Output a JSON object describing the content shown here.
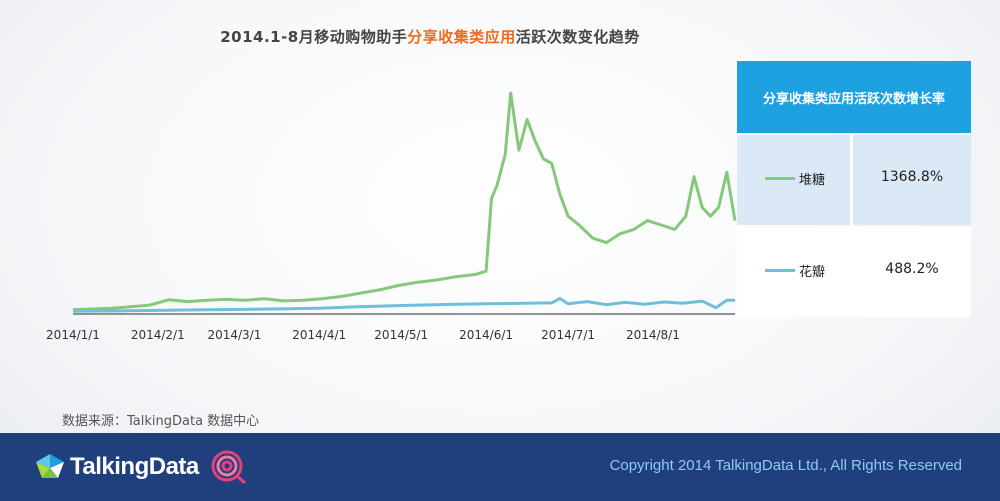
{
  "title": {
    "prefix": "2014.1-8月移动购物助手",
    "highlight": "分享收集类应用",
    "suffix": "活跃次数变化趋势",
    "highlight_color": "#ee6b1b"
  },
  "growth_table": {
    "header": "分享收集类应用活跃次数增长率",
    "header_color": "#1da1e1",
    "rows": [
      {
        "name": "堆糖",
        "value": "1368.8%",
        "color": "#84c97a"
      },
      {
        "name": "花瓣",
        "value": "488.2%",
        "color": "#6fbfdc"
      }
    ]
  },
  "source": "数据来源：TalkingData 数据中心",
  "footer": {
    "brand": "TalkingData",
    "copyright": "Copyright 2014 TalkingData Ltd., All Rights Reserved",
    "background": "#1f3f7d"
  },
  "chart_data": {
    "type": "line",
    "x_start": "2014/1/1",
    "x_end": "2014/8/31",
    "x_ticks": [
      "2014/1/1",
      "2014/2/1",
      "2014/3/1",
      "2014/4/1",
      "2014/5/1",
      "2014/6/1",
      "2014/7/1",
      "2014/8/1"
    ],
    "y_axis_visible": false,
    "ylim": [
      0,
      100
    ],
    "grid": false,
    "legend": "right-table",
    "series": [
      {
        "name": "堆糖",
        "color": "#84c97a",
        "points": [
          [
            "2014/1/1",
            1.5
          ],
          [
            "2014/1/8",
            1.8
          ],
          [
            "2014/1/15",
            2.2
          ],
          [
            "2014/1/22",
            2.8
          ],
          [
            "2014/1/29",
            3.6
          ],
          [
            "2014/2/5",
            6.0
          ],
          [
            "2014/2/12",
            5.2
          ],
          [
            "2014/2/19",
            5.8
          ],
          [
            "2014/2/26",
            6.2
          ],
          [
            "2014/3/5",
            5.8
          ],
          [
            "2014/3/12",
            6.5
          ],
          [
            "2014/3/19",
            5.5
          ],
          [
            "2014/3/26",
            5.8
          ],
          [
            "2014/4/2",
            6.5
          ],
          [
            "2014/4/9",
            7.5
          ],
          [
            "2014/4/16",
            9.0
          ],
          [
            "2014/4/23",
            10.5
          ],
          [
            "2014/4/30",
            12.5
          ],
          [
            "2014/5/7",
            14.0
          ],
          [
            "2014/5/14",
            15.0
          ],
          [
            "2014/5/21",
            16.5
          ],
          [
            "2014/5/28",
            17.5
          ],
          [
            "2014/6/1",
            19.0
          ],
          [
            "2014/6/3",
            52.0
          ],
          [
            "2014/6/5",
            58.0
          ],
          [
            "2014/6/8",
            72.0
          ],
          [
            "2014/6/10",
            100.0
          ],
          [
            "2014/6/13",
            74.0
          ],
          [
            "2014/6/16",
            88.0
          ],
          [
            "2014/6/19",
            78.0
          ],
          [
            "2014/6/22",
            70.0
          ],
          [
            "2014/6/25",
            68.0
          ],
          [
            "2014/6/28",
            54.0
          ],
          [
            "2014/7/1",
            44.0
          ],
          [
            "2014/7/5",
            40.0
          ],
          [
            "2014/7/10",
            34.0
          ],
          [
            "2014/7/15",
            32.0
          ],
          [
            "2014/7/20",
            36.0
          ],
          [
            "2014/7/25",
            38.0
          ],
          [
            "2014/7/30",
            42.0
          ],
          [
            "2014/8/4",
            40.0
          ],
          [
            "2014/8/9",
            38.0
          ],
          [
            "2014/8/13",
            44.0
          ],
          [
            "2014/8/16",
            62.0
          ],
          [
            "2014/8/19",
            48.0
          ],
          [
            "2014/8/22",
            44.0
          ],
          [
            "2014/8/25",
            48.0
          ],
          [
            "2014/8/28",
            64.0
          ],
          [
            "2014/8/31",
            42.0
          ]
        ]
      },
      {
        "name": "花瓣",
        "color": "#6fbfdc",
        "points": [
          [
            "2014/1/1",
            0.8
          ],
          [
            "2014/1/15",
            0.9
          ],
          [
            "2014/2/1",
            1.2
          ],
          [
            "2014/2/15",
            1.4
          ],
          [
            "2014/3/1",
            1.6
          ],
          [
            "2014/3/15",
            1.8
          ],
          [
            "2014/4/1",
            2.2
          ],
          [
            "2014/4/15",
            2.8
          ],
          [
            "2014/5/1",
            3.4
          ],
          [
            "2014/5/15",
            3.8
          ],
          [
            "2014/6/1",
            4.2
          ],
          [
            "2014/6/15",
            4.4
          ],
          [
            "2014/6/25",
            4.6
          ],
          [
            "2014/6/28",
            6.6
          ],
          [
            "2014/7/1",
            4.2
          ],
          [
            "2014/7/8",
            5.2
          ],
          [
            "2014/7/15",
            3.8
          ],
          [
            "2014/7/22",
            4.8
          ],
          [
            "2014/7/29",
            4.0
          ],
          [
            "2014/8/5",
            5.0
          ],
          [
            "2014/8/12",
            4.4
          ],
          [
            "2014/8/19",
            5.4
          ],
          [
            "2014/8/24",
            2.4
          ],
          [
            "2014/8/28",
            5.8
          ],
          [
            "2014/8/31",
            5.8
          ]
        ]
      }
    ]
  }
}
